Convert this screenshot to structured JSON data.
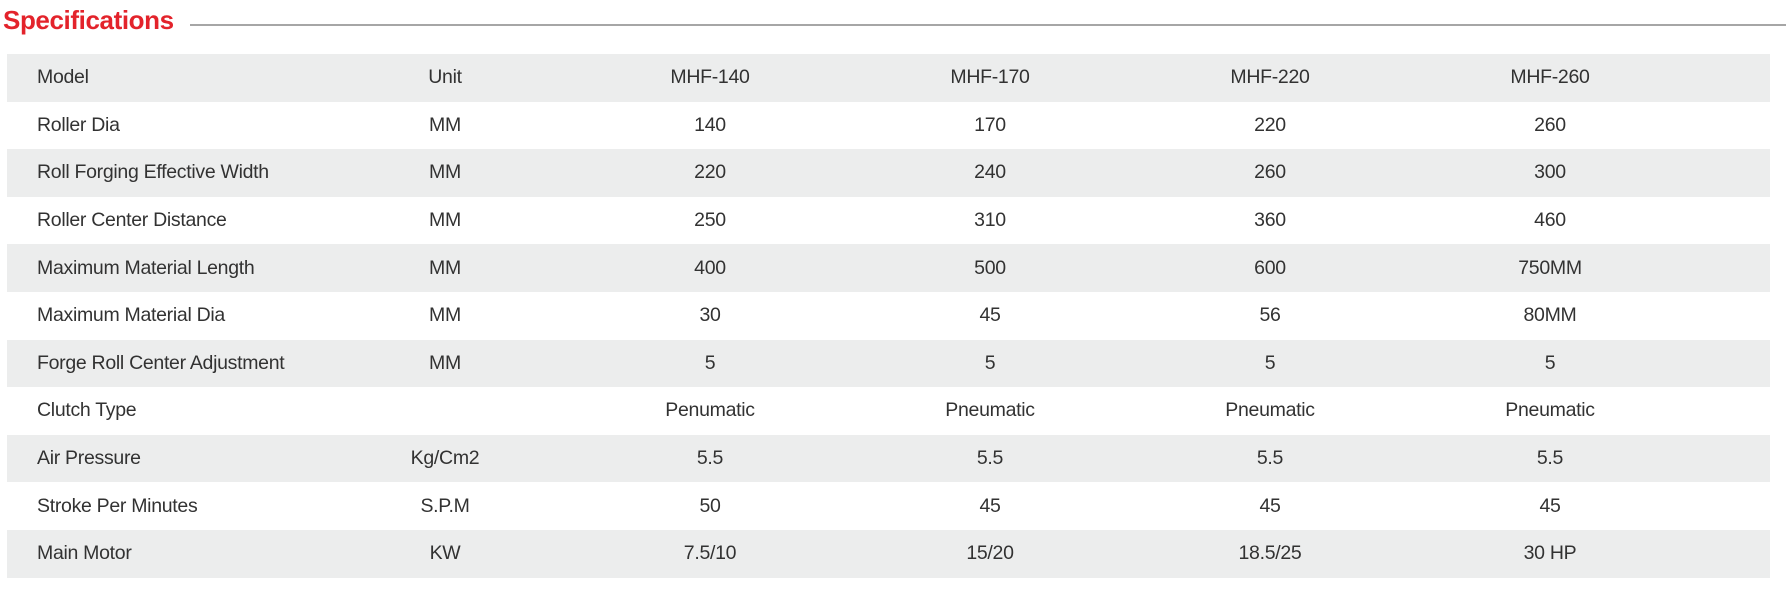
{
  "page": {
    "title": "Specifications",
    "accent_color": "#E3232B",
    "rule_color": "#A6A6A6",
    "stripe_color": "#ECEDED",
    "text_color": "#323232"
  },
  "table": {
    "columns": [
      "Model",
      "Unit",
      "MHF-140",
      "MHF-170",
      "MHF-220",
      "MHF-260"
    ],
    "rows": [
      {
        "label": "Roller Dia",
        "unit": "MM",
        "values": [
          "140",
          "170",
          "220",
          "260"
        ]
      },
      {
        "label": "Roll Forging Effective Width",
        "unit": "MM",
        "values": [
          "220",
          "240",
          "260",
          "300"
        ]
      },
      {
        "label": "Roller Center Distance",
        "unit": "MM",
        "values": [
          "250",
          "310",
          "360",
          "460"
        ]
      },
      {
        "label": "Maximum Material Length",
        "unit": "MM",
        "values": [
          "400",
          "500",
          "600",
          "750MM"
        ]
      },
      {
        "label": "Maximum Material Dia",
        "unit": "MM",
        "values": [
          "30",
          "45",
          "56",
          "80MM"
        ]
      },
      {
        "label": "Forge Roll Center Adjustment",
        "unit": "MM",
        "values": [
          "5",
          "5",
          "5",
          "5"
        ]
      },
      {
        "label": "Clutch Type",
        "unit": "",
        "values": [
          "Penumatic",
          "Pneumatic",
          "Pneumatic",
          "Pneumatic"
        ]
      },
      {
        "label": "Air Pressure",
        "unit": "Kg/Cm2",
        "values": [
          "5.5",
          "5.5",
          "5.5",
          "5.5"
        ]
      },
      {
        "label": "Stroke Per Minutes",
        "unit": "S.P.M",
        "values": [
          "50",
          "45",
          "45",
          "45"
        ]
      },
      {
        "label": "Main Motor",
        "unit": "KW",
        "values": [
          "7.5/10",
          "15/20",
          "18.5/25",
          "30 HP"
        ]
      }
    ]
  }
}
